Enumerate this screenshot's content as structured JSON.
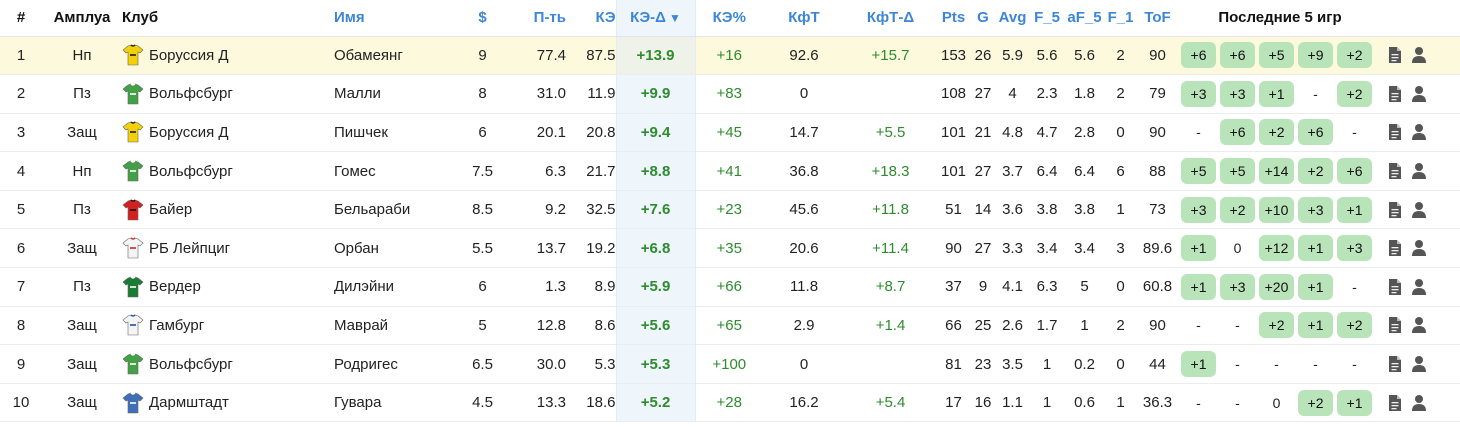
{
  "headers": {
    "rank": "#",
    "role": "Амплуа",
    "club": "Клуб",
    "name": "Имя",
    "price": "$",
    "pt": "П-ть",
    "ke": "КЭ",
    "ke_delta": "КЭ-Δ",
    "ke_pct": "КЭ%",
    "kft": "КфТ",
    "kft_delta": "КфТ-Δ",
    "pts": "Pts",
    "g": "G",
    "avg": "Avg",
    "f5": "F_5",
    "af5": "aF_5",
    "f1": "F_1",
    "tof": "ToF",
    "last5": "Последние 5 игр"
  },
  "sort_indicator": "▼",
  "colors": {
    "header_link": "#3d86d6",
    "positive": "#2e8b2e",
    "chip_bg": "#b9e4b9",
    "highlight_row": "#fcf9dc",
    "sorted_column": "#eef5fb"
  },
  "rows": [
    {
      "rank": "1",
      "role": "Нп",
      "club": "Боруссия Д",
      "jersey": "dortmund",
      "name": "Обамеянг",
      "price": "9",
      "pt": "77.4",
      "ke": "87.5",
      "ke_delta": "+13.9",
      "ke_pct": "+16",
      "kft": "92.6",
      "kft_delta": "+15.7",
      "pts": "153",
      "g": "26",
      "avg": "5.9",
      "f5": "5.6",
      "af5": "5.6",
      "f1": "2",
      "tof": "90",
      "games": [
        {
          "v": "+6",
          "f": true
        },
        {
          "v": "+6",
          "f": true
        },
        {
          "v": "+5",
          "f": true
        },
        {
          "v": "+9",
          "f": true
        },
        {
          "v": "+2",
          "f": true
        }
      ]
    },
    {
      "rank": "2",
      "role": "Пз",
      "club": "Вольфсбург",
      "jersey": "wolfsburg",
      "name": "Малли",
      "price": "8",
      "pt": "31.0",
      "ke": "11.9",
      "ke_delta": "+9.9",
      "ke_pct": "+83",
      "kft": "0",
      "kft_delta": "",
      "pts": "108",
      "g": "27",
      "avg": "4",
      "f5": "2.3",
      "af5": "1.8",
      "f1": "2",
      "tof": "79",
      "games": [
        {
          "v": "+3",
          "f": true
        },
        {
          "v": "+3",
          "f": true
        },
        {
          "v": "+1",
          "f": true
        },
        {
          "v": "-",
          "f": false
        },
        {
          "v": "+2",
          "f": true
        }
      ]
    },
    {
      "rank": "3",
      "role": "Защ",
      "club": "Боруссия Д",
      "jersey": "dortmund",
      "name": "Пишчек",
      "price": "6",
      "pt": "20.1",
      "ke": "20.8",
      "ke_delta": "+9.4",
      "ke_pct": "+45",
      "kft": "14.7",
      "kft_delta": "+5.5",
      "pts": "101",
      "g": "21",
      "avg": "4.8",
      "f5": "4.7",
      "af5": "2.8",
      "f1": "0",
      "tof": "90",
      "games": [
        {
          "v": "-",
          "f": false
        },
        {
          "v": "+6",
          "f": true
        },
        {
          "v": "+2",
          "f": true
        },
        {
          "v": "+6",
          "f": true
        },
        {
          "v": "-",
          "f": false
        }
      ]
    },
    {
      "rank": "4",
      "role": "Нп",
      "club": "Вольфсбург",
      "jersey": "wolfsburg",
      "name": "Гомес",
      "price": "7.5",
      "pt": "6.3",
      "ke": "21.7",
      "ke_delta": "+8.8",
      "ke_pct": "+41",
      "kft": "36.8",
      "kft_delta": "+18.3",
      "pts": "101",
      "g": "27",
      "avg": "3.7",
      "f5": "6.4",
      "af5": "6.4",
      "f1": "6",
      "tof": "88",
      "games": [
        {
          "v": "+5",
          "f": true
        },
        {
          "v": "+5",
          "f": true
        },
        {
          "v": "+14",
          "f": true
        },
        {
          "v": "+2",
          "f": true
        },
        {
          "v": "+6",
          "f": true
        }
      ]
    },
    {
      "rank": "5",
      "role": "Пз",
      "club": "Байер",
      "jersey": "bayer",
      "name": "Бельараби",
      "price": "8.5",
      "pt": "9.2",
      "ke": "32.5",
      "ke_delta": "+7.6",
      "ke_pct": "+23",
      "kft": "45.6",
      "kft_delta": "+11.8",
      "pts": "51",
      "g": "14",
      "avg": "3.6",
      "f5": "3.8",
      "af5": "3.8",
      "f1": "1",
      "tof": "73",
      "games": [
        {
          "v": "+3",
          "f": true
        },
        {
          "v": "+2",
          "f": true
        },
        {
          "v": "+10",
          "f": true
        },
        {
          "v": "+3",
          "f": true
        },
        {
          "v": "+1",
          "f": true
        }
      ]
    },
    {
      "rank": "6",
      "role": "Защ",
      "club": "РБ Лейпциг",
      "jersey": "leipzig",
      "name": "Орбан",
      "price": "5.5",
      "pt": "13.7",
      "ke": "19.2",
      "ke_delta": "+6.8",
      "ke_pct": "+35",
      "kft": "20.6",
      "kft_delta": "+11.4",
      "pts": "90",
      "g": "27",
      "avg": "3.3",
      "f5": "3.4",
      "af5": "3.4",
      "f1": "3",
      "tof": "89.6",
      "games": [
        {
          "v": "+1",
          "f": true
        },
        {
          "v": "0",
          "f": false
        },
        {
          "v": "+12",
          "f": true
        },
        {
          "v": "+1",
          "f": true
        },
        {
          "v": "+3",
          "f": true
        }
      ]
    },
    {
      "rank": "7",
      "role": "Пз",
      "club": "Вердер",
      "jersey": "werder",
      "name": "Дилэйни",
      "price": "6",
      "pt": "1.3",
      "ke": "8.9",
      "ke_delta": "+5.9",
      "ke_pct": "+66",
      "kft": "11.8",
      "kft_delta": "+8.7",
      "pts": "37",
      "g": "9",
      "avg": "4.1",
      "f5": "6.3",
      "af5": "5",
      "f1": "0",
      "tof": "60.8",
      "games": [
        {
          "v": "+1",
          "f": true
        },
        {
          "v": "+3",
          "f": true
        },
        {
          "v": "+20",
          "f": true
        },
        {
          "v": "+1",
          "f": true
        },
        {
          "v": "-",
          "f": false
        }
      ]
    },
    {
      "rank": "8",
      "role": "Защ",
      "club": "Гамбург",
      "jersey": "hamburg",
      "name": "Маврай",
      "price": "5",
      "pt": "12.8",
      "ke": "8.6",
      "ke_delta": "+5.6",
      "ke_pct": "+65",
      "kft": "2.9",
      "kft_delta": "+1.4",
      "pts": "66",
      "g": "25",
      "avg": "2.6",
      "f5": "1.7",
      "af5": "1",
      "f1": "2",
      "tof": "90",
      "games": [
        {
          "v": "-",
          "f": false
        },
        {
          "v": "-",
          "f": false
        },
        {
          "v": "+2",
          "f": true
        },
        {
          "v": "+1",
          "f": true
        },
        {
          "v": "+2",
          "f": true
        }
      ]
    },
    {
      "rank": "9",
      "role": "Защ",
      "club": "Вольфсбург",
      "jersey": "wolfsburg",
      "name": "Родригес",
      "price": "6.5",
      "pt": "30.0",
      "ke": "5.3",
      "ke_delta": "+5.3",
      "ke_pct": "+100",
      "kft": "0",
      "kft_delta": "",
      "pts": "81",
      "g": "23",
      "avg": "3.5",
      "f5": "1",
      "af5": "0.2",
      "f1": "0",
      "tof": "44",
      "games": [
        {
          "v": "+1",
          "f": true
        },
        {
          "v": "-",
          "f": false
        },
        {
          "v": "-",
          "f": false
        },
        {
          "v": "-",
          "f": false
        },
        {
          "v": "-",
          "f": false
        }
      ]
    },
    {
      "rank": "10",
      "role": "Защ",
      "club": "Дармштадт",
      "jersey": "darmstadt",
      "name": "Гувара",
      "price": "4.5",
      "pt": "13.3",
      "ke": "18.6",
      "ke_delta": "+5.2",
      "ke_pct": "+28",
      "kft": "16.2",
      "kft_delta": "+5.4",
      "pts": "17",
      "g": "16",
      "avg": "1.1",
      "f5": "1",
      "af5": "0.6",
      "f1": "1",
      "tof": "36.3",
      "games": [
        {
          "v": "-",
          "f": false
        },
        {
          "v": "-",
          "f": false
        },
        {
          "v": "0",
          "f": false
        },
        {
          "v": "+2",
          "f": true
        },
        {
          "v": "+1",
          "f": true
        }
      ]
    }
  ]
}
